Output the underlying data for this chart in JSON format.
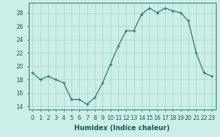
{
  "x": [
    0,
    1,
    2,
    3,
    4,
    5,
    6,
    7,
    8,
    9,
    10,
    11,
    12,
    13,
    14,
    15,
    16,
    17,
    18,
    19,
    20,
    21,
    22,
    23
  ],
  "y": [
    19,
    18,
    18.5,
    18,
    17.5,
    15,
    15,
    14.3,
    15.3,
    17.5,
    20.3,
    23,
    25.3,
    25.3,
    27.8,
    28.7,
    28,
    28.7,
    28.3,
    28,
    26.8,
    22,
    19,
    18.5
  ],
  "line_color": "#2e7d6e",
  "marker_color": "#2e7d6e",
  "bg_color": "#cceee8",
  "grid_color": "#aad4ce",
  "xlabel": "Humidex (Indice chaleur)",
  "ylabel": "",
  "xlim": [
    -0.5,
    23.5
  ],
  "ylim": [
    13.5,
    29.5
  ],
  "yticks": [
    14,
    16,
    18,
    20,
    22,
    24,
    26,
    28
  ],
  "xticks": [
    0,
    1,
    2,
    3,
    4,
    5,
    6,
    7,
    8,
    9,
    10,
    11,
    12,
    13,
    14,
    15,
    16,
    17,
    18,
    19,
    20,
    21,
    22,
    23
  ],
  "xlabel_fontsize": 7.0,
  "tick_fontsize": 6.0,
  "line_width": 1.0,
  "marker_size": 3.0
}
